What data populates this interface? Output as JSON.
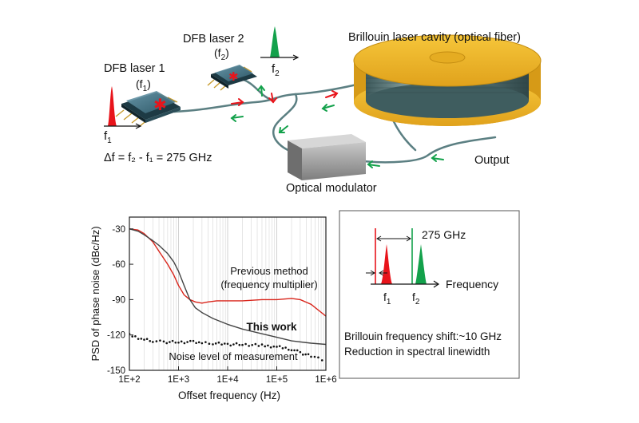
{
  "schematic": {
    "laser1_title": "DFB laser 1",
    "laser1_freq": "(f",
    "laser1_freq_sub": "1",
    "laser1_freq_close": ")",
    "laser2_title": "DFB laser 2",
    "laser2_freq": "(f",
    "laser2_freq_sub": "2",
    "laser2_freq_close": ")",
    "f1_label": "f",
    "f1_sub": "1",
    "f2_label": "f",
    "f2_sub": "2",
    "delta_eq": "Δf = f₂ - f₁ = 275 GHz",
    "cavity_title": "Brillouin laser cavity (optical fiber)",
    "modulator_label": "Optical modulator",
    "output_label": "Output",
    "colors": {
      "red": "#e8141b",
      "green": "#13a14b",
      "gold": "#f2b728",
      "fiber": "#5b7f82"
    }
  },
  "spectrum_box": {
    "spacing_label": "275 GHz",
    "axis_label": "Frequency",
    "f1_label": "f",
    "f1_sub": "1",
    "f2_label": "f",
    "f2_sub": "2",
    "note1": "Brillouin frequency shift:~10 GHz",
    "note2": "Reduction in spectral linewidth"
  },
  "chart_data": {
    "type": "line",
    "title": "",
    "xlabel": "Offset frequency (Hz)",
    "ylabel": "PSD of phase noise  (dBc/Hz)",
    "xscale": "log",
    "xlim": [
      100,
      1000000
    ],
    "ylim": [
      -150,
      -20
    ],
    "xticks": [
      "1E+2",
      "1E+3",
      "1E+4",
      "1E+5",
      "1E+6"
    ],
    "yticks": [
      "-30",
      "-60",
      "-90",
      "-120",
      "-150"
    ],
    "ytick_values": [
      -30,
      -60,
      -90,
      -120,
      -150
    ],
    "grid": "vertical minor",
    "annotations": [
      "Previous method",
      "(frequency multiplier)",
      "This work",
      "Noise level of measurement"
    ],
    "series": [
      {
        "name": "Previous method (frequency multiplier)",
        "color": "#d9261c",
        "x": [
          100,
          150,
          200,
          300,
          400,
          600,
          800,
          1000,
          1300,
          1700,
          2200,
          3000,
          4000,
          6000,
          10000,
          20000,
          50000,
          100000,
          200000,
          300000,
          500000,
          1000000
        ],
        "y": [
          -30,
          -31,
          -34,
          -41,
          -49,
          -60,
          -69,
          -78,
          -86,
          -90,
          -92,
          -93,
          -92,
          -91,
          -91,
          -91,
          -90,
          -90,
          -89,
          -90,
          -94,
          -104
        ]
      },
      {
        "name": "This work",
        "color": "#444444",
        "x": [
          100,
          150,
          200,
          300,
          400,
          600,
          800,
          1000,
          1300,
          1700,
          2200,
          3000,
          5000,
          10000,
          20000,
          50000,
          100000,
          200000,
          500000,
          1000000
        ],
        "y": [
          -30,
          -32,
          -35,
          -40,
          -44,
          -51,
          -58,
          -66,
          -78,
          -90,
          -97,
          -101,
          -106,
          -111,
          -115,
          -119,
          -122,
          -125,
          -127,
          -128
        ]
      },
      {
        "name": "Noise level of measurement",
        "color": "#111111",
        "style": "dotted",
        "x": [
          100,
          200,
          300,
          500,
          1000,
          2000,
          3000,
          5000,
          10000,
          20000,
          50000,
          100000,
          200000,
          300000,
          500000,
          700000,
          1000000
        ],
        "y": [
          -120,
          -124,
          -125,
          -126,
          -126,
          -126,
          -127,
          -127,
          -128,
          -128,
          -129,
          -130,
          -132,
          -135,
          -138,
          -140,
          -142
        ]
      }
    ]
  }
}
